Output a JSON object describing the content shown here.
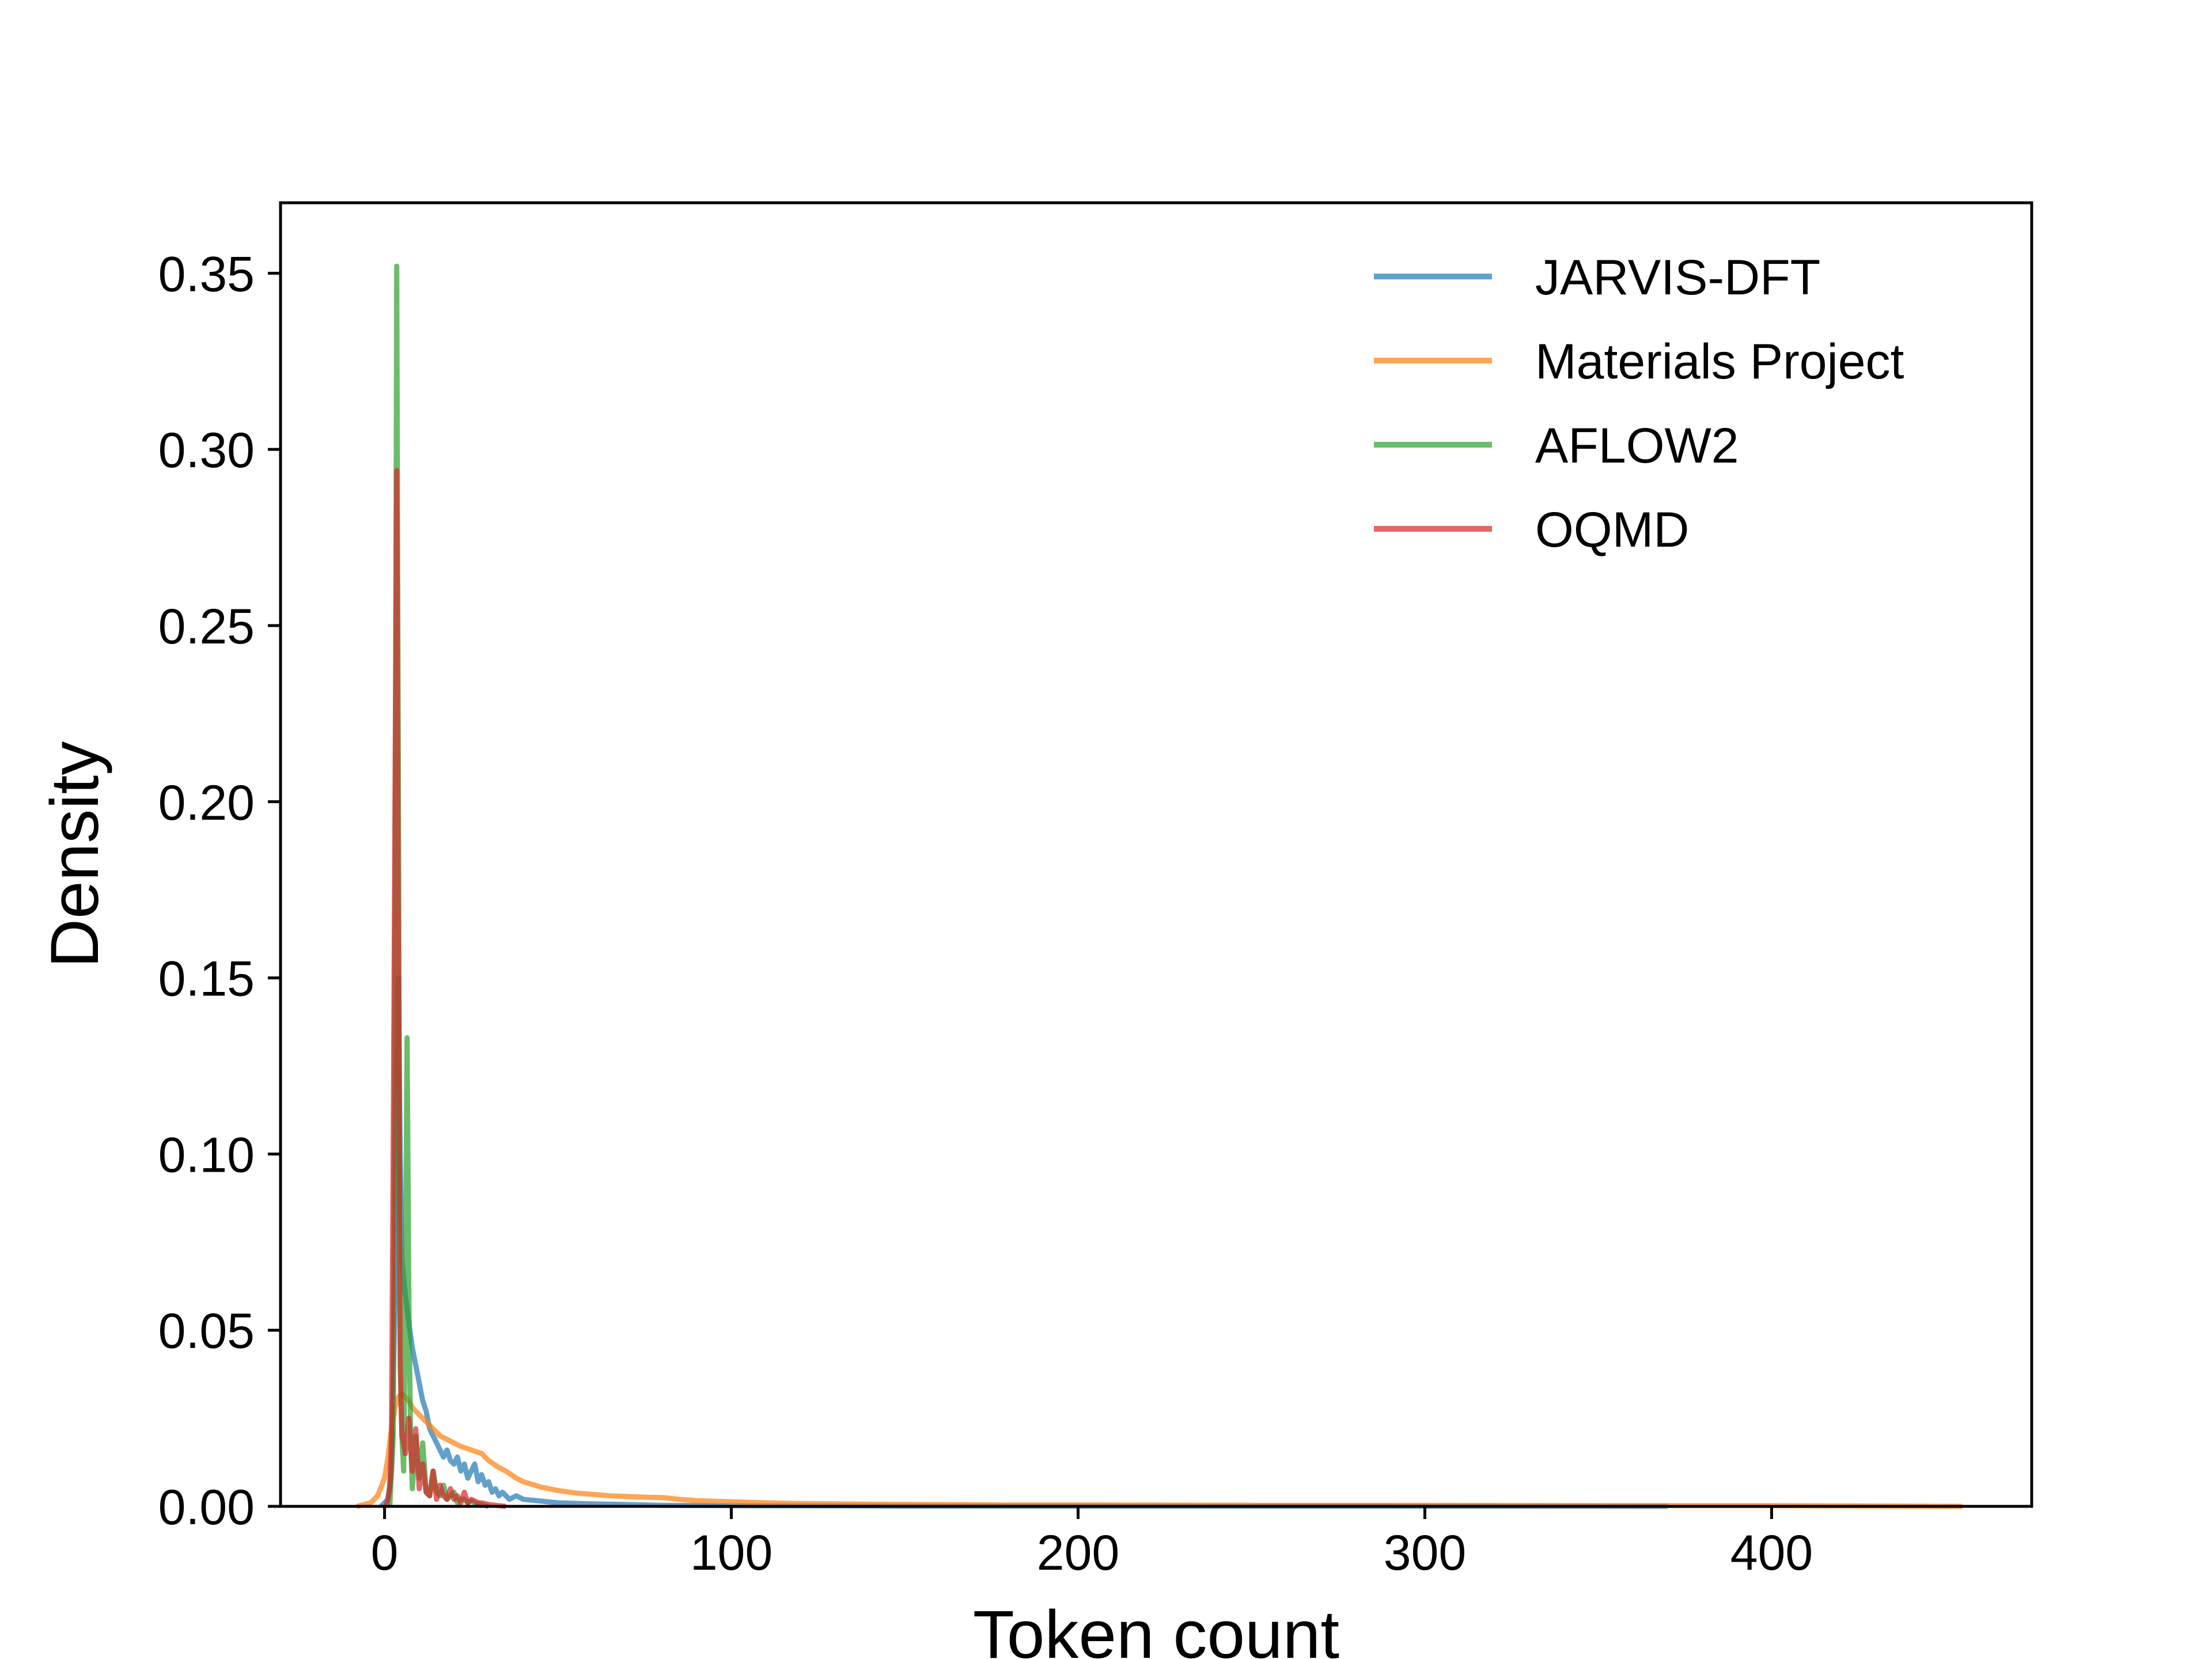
{
  "chart_data": {
    "type": "line",
    "title": "",
    "xlabel": "Token count",
    "ylabel": "Density",
    "xlim": [
      -30,
      475
    ],
    "ylim": [
      0,
      0.37
    ],
    "xticks": [
      0,
      100,
      200,
      300,
      400
    ],
    "xtick_labels": [
      "0",
      "100",
      "200",
      "300",
      "400"
    ],
    "yticks": [
      0.0,
      0.05,
      0.1,
      0.15,
      0.2,
      0.25,
      0.3,
      0.35
    ],
    "ytick_labels": [
      "0.00",
      "0.05",
      "0.10",
      "0.15",
      "0.20",
      "0.25",
      "0.30",
      "0.35"
    ],
    "grid": false,
    "legend_position": "top-right",
    "series": [
      {
        "name": "JARVIS-DFT",
        "color": "#1f77b4",
        "x": [
          -1,
          1,
          2,
          3,
          3.5,
          4,
          4.5,
          5,
          5.5,
          6,
          7,
          8,
          9,
          10,
          11,
          12,
          13,
          14,
          15,
          16,
          17,
          18,
          19,
          20,
          21,
          22,
          23,
          24,
          25,
          26,
          27,
          28,
          29,
          30,
          31,
          32,
          33,
          34,
          36,
          38,
          40,
          45,
          50,
          60,
          70,
          80,
          100,
          150,
          200,
          250,
          300,
          350,
          370
        ],
        "y": [
          0.0,
          0.002,
          0.01,
          0.06,
          0.12,
          0.15,
          0.1,
          0.07,
          0.065,
          0.06,
          0.052,
          0.045,
          0.04,
          0.035,
          0.03,
          0.027,
          0.022,
          0.02,
          0.018,
          0.016,
          0.014,
          0.016,
          0.013,
          0.012,
          0.014,
          0.01,
          0.012,
          0.008,
          0.01,
          0.012,
          0.007,
          0.009,
          0.006,
          0.007,
          0.004,
          0.005,
          0.003,
          0.004,
          0.002,
          0.003,
          0.002,
          0.0015,
          0.001,
          0.0007,
          0.0005,
          0.0003,
          0.0002,
          0.0001,
          8e-05,
          6e-05,
          5e-05,
          3e-05,
          0.0
        ]
      },
      {
        "name": "Materials Project",
        "color": "#ff7f0e",
        "x": [
          -8,
          -4,
          -2,
          0,
          1,
          2,
          3,
          4,
          5,
          6,
          7,
          8,
          9,
          10,
          12,
          14,
          16,
          18,
          20,
          22,
          25,
          28,
          30,
          33,
          35,
          38,
          40,
          45,
          50,
          55,
          60,
          65,
          70,
          75,
          80,
          85,
          90,
          100,
          110,
          120,
          140,
          160,
          180,
          200,
          250,
          300,
          350,
          400,
          430,
          455
        ],
        "y": [
          0.0,
          0.001,
          0.003,
          0.008,
          0.014,
          0.022,
          0.028,
          0.031,
          0.032,
          0.031,
          0.03,
          0.028,
          0.027,
          0.026,
          0.024,
          0.022,
          0.02,
          0.019,
          0.018,
          0.017,
          0.016,
          0.015,
          0.013,
          0.011,
          0.01,
          0.008,
          0.007,
          0.0055,
          0.0045,
          0.0038,
          0.0034,
          0.003,
          0.0028,
          0.0026,
          0.0025,
          0.002,
          0.0016,
          0.0013,
          0.001,
          0.0008,
          0.0006,
          0.0005,
          0.0004,
          0.0004,
          0.0003,
          0.0003,
          0.0002,
          0.0002,
          0.0001,
          0.0
        ]
      },
      {
        "name": "AFLOW2",
        "color": "#2ca02c",
        "x": [
          1.5,
          2.5,
          3,
          3.5,
          4,
          4.5,
          5,
          5.5,
          6,
          6.5,
          7,
          7.5,
          8,
          9,
          10,
          11,
          12,
          13,
          14,
          15,
          16,
          17,
          18,
          19,
          20,
          21,
          22,
          23,
          24,
          25,
          26,
          28,
          30
        ],
        "y": [
          0.0,
          0.02,
          0.15,
          0.352,
          0.2,
          0.05,
          0.02,
          0.01,
          0.06,
          0.133,
          0.06,
          0.02,
          0.005,
          0.02,
          0.008,
          0.018,
          0.004,
          0.003,
          0.01,
          0.004,
          0.003,
          0.006,
          0.002,
          0.003,
          0.004,
          0.001,
          0.002,
          0.002,
          0.001,
          0.0015,
          0.001,
          0.0005,
          0.0
        ]
      },
      {
        "name": "OQMD",
        "color": "#d62728",
        "x": [
          0.5,
          1.5,
          2,
          2.5,
          3,
          3.5,
          4,
          4.5,
          5,
          5.5,
          6,
          7,
          8,
          9,
          10,
          11,
          12,
          13,
          14,
          15,
          16,
          17,
          18,
          19,
          20,
          21,
          22,
          23,
          24,
          25,
          26,
          27,
          28,
          30,
          32,
          35
        ],
        "y": [
          0.0,
          0.005,
          0.02,
          0.1,
          0.2,
          0.294,
          0.15,
          0.04,
          0.02,
          0.018,
          0.015,
          0.025,
          0.01,
          0.022,
          0.005,
          0.012,
          0.004,
          0.003,
          0.01,
          0.002,
          0.006,
          0.003,
          0.002,
          0.005,
          0.002,
          0.003,
          0.001,
          0.004,
          0.001,
          0.002,
          0.0015,
          0.001,
          0.001,
          0.0005,
          0.0003,
          0.0
        ]
      }
    ]
  }
}
